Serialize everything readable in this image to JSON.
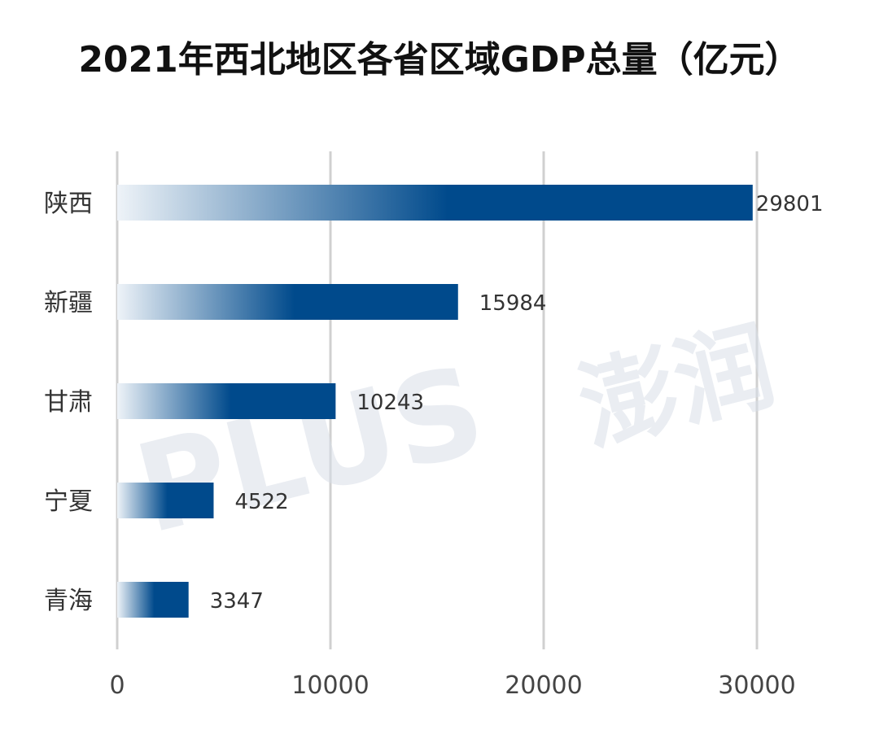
{
  "title": "2021年西北地区各省区域GDP总量（亿元）",
  "watermark": {
    "latin": "PLUS",
    "chinese": "澎润"
  },
  "colors": {
    "bar": "#004a8c",
    "bar_fade": "#eef3f8",
    "grid": "#d0d0d0",
    "title": "#111111",
    "text": "#333333"
  },
  "chart_data": {
    "type": "bar",
    "orientation": "horizontal",
    "title": "2021年西北地区各省区域GDP总量（亿元）",
    "categories": [
      "陕西",
      "新疆",
      "甘肃",
      "宁夏",
      "青海"
    ],
    "values": [
      29801,
      15984,
      10243,
      4522,
      3347
    ],
    "data_labels": [
      "29801",
      "15984",
      "10243",
      "4522",
      "3347"
    ],
    "xlabel": "",
    "ylabel": "",
    "xlim": [
      0,
      30000
    ],
    "x_ticks": [
      0,
      10000,
      20000,
      30000
    ],
    "x_tick_labels": [
      "0",
      "10000",
      "20000",
      "30000"
    ],
    "grid": "vertical",
    "legend": "none"
  }
}
